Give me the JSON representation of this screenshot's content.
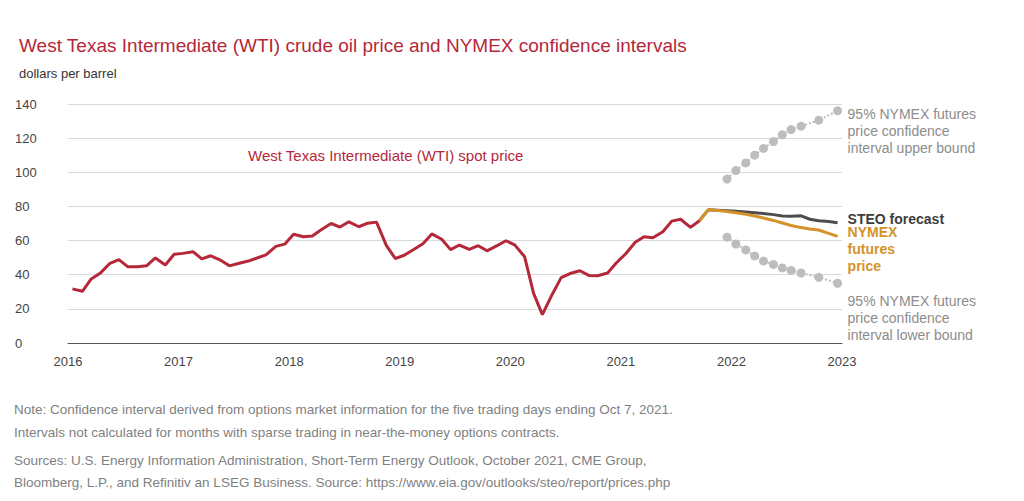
{
  "chart_data": {
    "type": "line",
    "title": "West Texas Intermediate (WTI) crude oil price and NYMEX confidence intervals",
    "subtitle": "dollars per barrel",
    "annotations": [
      "West Texas Intermediate (WTI) spot price"
    ],
    "notes": [
      "Note: Confidence interval derived from options market information for the five trading days ending Oct 7, 2021.",
      "Intervals not calculated for months with sparse trading in near-the-money options contracts.",
      "Sources: U.S. Energy Information Administration, Short-Term Energy Outlook, October 2021, CME Group,",
      "Bloomberg, L.P., and Refinitiv an LSEG Business. Source: https://www.eia.gov/outlooks/steo/report/prices.php"
    ],
    "xlim": [
      2016,
      2023
    ],
    "xticks": [
      2016,
      2017,
      2018,
      2019,
      2020,
      2021,
      2022,
      2023
    ],
    "ylim": [
      0,
      140
    ],
    "yticks": [
      0,
      20,
      40,
      60,
      80,
      100,
      120,
      140
    ],
    "grid": true,
    "series": [
      {
        "name": "95% NYMEX futures price confidence interval upper bound",
        "color": "#bdbdbd",
        "marker": "circle",
        "line_style": "dotted",
        "x": [
          2021.96,
          2022.04,
          2022.13,
          2022.21,
          2022.29,
          2022.38,
          2022.46,
          2022.54,
          2022.63,
          2022.79,
          2022.96
        ],
        "values": [
          96,
          101,
          105.5,
          110,
          114,
          118,
          122,
          125,
          127,
          130.5,
          136
        ]
      },
      {
        "name": "95% NYMEX futures price confidence interval lower bound",
        "color": "#bdbdbd",
        "marker": "circle",
        "line_style": "dotted",
        "x": [
          2021.96,
          2022.04,
          2022.13,
          2022.21,
          2022.29,
          2022.38,
          2022.46,
          2022.54,
          2022.63,
          2022.79,
          2022.96
        ],
        "values": [
          62,
          58,
          54.5,
          51,
          48,
          46,
          44,
          42.5,
          41,
          38.5,
          35
        ]
      },
      {
        "name": "STEO forecast",
        "color": "#4d4d4f",
        "marker": "none",
        "line_style": "solid",
        "x": [
          2021.71,
          2021.79,
          2021.88,
          2021.96,
          2022.04,
          2022.13,
          2022.21,
          2022.29,
          2022.38,
          2022.46,
          2022.54,
          2022.63,
          2022.71,
          2022.79,
          2022.88,
          2022.96
        ],
        "values": [
          71.6,
          78,
          77.8,
          77.5,
          77.2,
          76.8,
          76.3,
          75.8,
          75.2,
          74.4,
          74.2,
          74.5,
          72.5,
          71.6,
          71.2,
          70.5
        ]
      },
      {
        "name": "NYMEX futures price",
        "color": "#d4922a",
        "marker": "none",
        "line_style": "solid",
        "x": [
          2021.71,
          2021.79,
          2021.88,
          2021.96,
          2022.04,
          2022.13,
          2022.21,
          2022.29,
          2022.38,
          2022.46,
          2022.54,
          2022.63,
          2022.71,
          2022.79,
          2022.88,
          2022.96
        ],
        "values": [
          71.6,
          78,
          77.6,
          77,
          76.3,
          75.4,
          74.4,
          73.2,
          71.8,
          70.3,
          68.8,
          67.6,
          66.8,
          66.2,
          64.2,
          62.5
        ]
      },
      {
        "color": "#b5283a",
        "marker": "none",
        "line_style": "solid",
        "x": [
          2016.04,
          2016.13,
          2016.21,
          2016.29,
          2016.38,
          2016.46,
          2016.54,
          2016.63,
          2016.71,
          2016.79,
          2016.88,
          2016.96,
          2017.04,
          2017.13,
          2017.21,
          2017.29,
          2017.38,
          2017.46,
          2017.54,
          2017.63,
          2017.71,
          2017.79,
          2017.88,
          2017.96,
          2018.04,
          2018.13,
          2018.21,
          2018.29,
          2018.38,
          2018.46,
          2018.54,
          2018.63,
          2018.71,
          2018.79,
          2018.88,
          2018.96,
          2019.04,
          2019.13,
          2019.21,
          2019.29,
          2019.38,
          2019.46,
          2019.54,
          2019.63,
          2019.71,
          2019.79,
          2019.88,
          2019.96,
          2020.04,
          2020.13,
          2020.21,
          2020.29,
          2020.38,
          2020.46,
          2020.54,
          2020.63,
          2020.71,
          2020.79,
          2020.88,
          2020.96,
          2021.04,
          2021.13,
          2021.21,
          2021.29,
          2021.38,
          2021.46,
          2021.54,
          2021.63,
          2021.71
        ],
        "values": [
          31.7,
          30.3,
          37.5,
          40.8,
          46.7,
          48.8,
          44.7,
          44.7,
          45.2,
          49.8,
          45.7,
          52.0,
          52.5,
          53.5,
          49.3,
          51.1,
          48.5,
          45.2,
          46.6,
          48.0,
          49.8,
          51.6,
          56.6,
          57.9,
          63.7,
          62.2,
          62.7,
          66.3,
          70.0,
          67.9,
          71.0,
          68.1,
          70.2,
          70.8,
          57.0,
          49.5,
          51.4,
          54.9,
          58.2,
          63.9,
          60.8,
          54.7,
          57.4,
          54.8,
          57.0,
          54.0,
          57.0,
          59.9,
          57.5,
          50.5,
          29.2,
          16.6,
          28.6,
          38.3,
          40.7,
          42.3,
          39.6,
          39.4,
          41.0,
          47.0,
          52.0,
          59.0,
          62.3,
          61.7,
          65.2,
          71.4,
          72.5,
          67.7,
          71.6
        ]
      }
    ]
  }
}
